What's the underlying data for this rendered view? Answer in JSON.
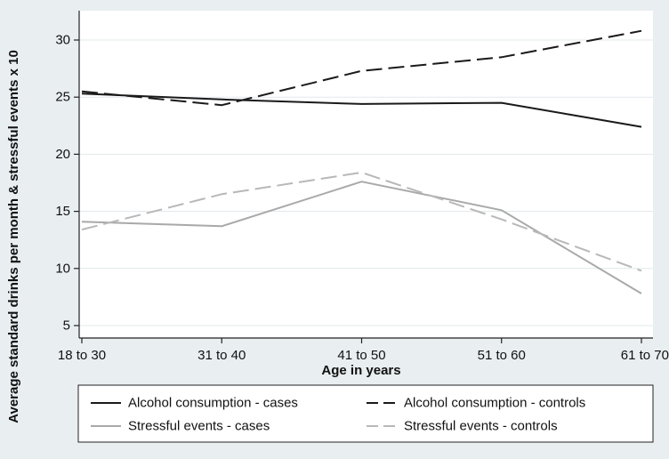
{
  "chart_data": {
    "type": "line",
    "xlabel": "Age in years",
    "ylabel": "Average standard drinks per month & stressful events x 10",
    "categories": [
      "18 to 30",
      "31 to 40",
      "41 to 50",
      "51 to 60",
      "61 to 70"
    ],
    "yticks": [
      5,
      10,
      15,
      20,
      25,
      30
    ],
    "ylim": [
      4.5,
      31.5
    ],
    "grid": true,
    "legend_position": "bottom",
    "series": [
      {
        "name": "Alcohol consumption - cases",
        "values": [
          25.3,
          24.8,
          24.4,
          24.5,
          22.4
        ],
        "color": "#1a1a1a",
        "dash": "solid"
      },
      {
        "name": "Alcohol consumption - controls",
        "values": [
          25.5,
          24.3,
          27.3,
          28.5,
          30.8
        ],
        "color": "#1a1a1a",
        "dash": "dashed"
      },
      {
        "name": "Stressful events - cases",
        "values": [
          14.1,
          13.7,
          17.6,
          15.1,
          7.8
        ],
        "color": "#a9a9a9",
        "dash": "solid"
      },
      {
        "name": "Stressful events - controls",
        "values": [
          13.4,
          16.5,
          18.4,
          14.3,
          9.8
        ],
        "color": "#b8b8b8",
        "dash": "dashed"
      }
    ]
  }
}
